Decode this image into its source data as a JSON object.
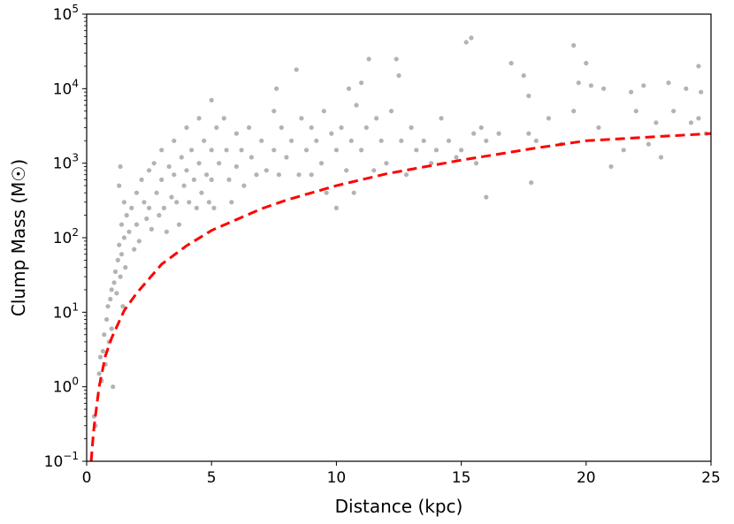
{
  "chart_data": {
    "type": "scatter",
    "title": "",
    "xlabel": "Distance (kpc)",
    "ylabel": "Clump Mass (M☉)",
    "xlim": [
      0,
      25
    ],
    "ylim": [
      0.1,
      100000
    ],
    "yscale": "log",
    "grid": false,
    "x_ticks": [
      0,
      5,
      10,
      15,
      20,
      25
    ],
    "x_tick_labels": [
      "0",
      "5",
      "10",
      "15",
      "20",
      "25"
    ],
    "y_ticks": [
      0.1,
      1,
      10,
      100,
      1000,
      10000,
      100000
    ],
    "y_tick_labels": [
      {
        "base": "10",
        "exp": "−1"
      },
      {
        "base": "10",
        "exp": "0"
      },
      {
        "base": "10",
        "exp": "1"
      },
      {
        "base": "10",
        "exp": "2"
      },
      {
        "base": "10",
        "exp": "3"
      },
      {
        "base": "10",
        "exp": "4"
      },
      {
        "base": "10",
        "exp": "5"
      }
    ],
    "series": [
      {
        "kind": "scatter",
        "color": "#808080",
        "points": [
          [
            0.3,
            0.4
          ],
          [
            0.35,
            0.3
          ],
          [
            0.5,
            1.5
          ],
          [
            0.55,
            2.5
          ],
          [
            0.6,
            1.2
          ],
          [
            0.65,
            3
          ],
          [
            0.7,
            5
          ],
          [
            0.75,
            2
          ],
          [
            0.8,
            8
          ],
          [
            0.85,
            12
          ],
          [
            0.9,
            4
          ],
          [
            0.95,
            15
          ],
          [
            1.0,
            20
          ],
          [
            1.0,
            6
          ],
          [
            1.05,
            1
          ],
          [
            1.1,
            25
          ],
          [
            1.15,
            35
          ],
          [
            1.2,
            18
          ],
          [
            1.25,
            50
          ],
          [
            1.3,
            80
          ],
          [
            1.3,
            500
          ],
          [
            1.35,
            900
          ],
          [
            1.35,
            30
          ],
          [
            1.4,
            150
          ],
          [
            1.4,
            60
          ],
          [
            1.45,
            12
          ],
          [
            1.5,
            100
          ],
          [
            1.5,
            300
          ],
          [
            1.55,
            40
          ],
          [
            1.6,
            200
          ],
          [
            1.7,
            120
          ],
          [
            1.8,
            250
          ],
          [
            1.9,
            70
          ],
          [
            2.0,
            400
          ],
          [
            2.0,
            150
          ],
          [
            2.1,
            90
          ],
          [
            2.2,
            600
          ],
          [
            2.3,
            300
          ],
          [
            2.4,
            180
          ],
          [
            2.5,
            800
          ],
          [
            2.5,
            250
          ],
          [
            2.6,
            130
          ],
          [
            2.7,
            1000
          ],
          [
            2.8,
            400
          ],
          [
            2.9,
            200
          ],
          [
            3.0,
            1500
          ],
          [
            3.0,
            600
          ],
          [
            3.1,
            250
          ],
          [
            3.2,
            120
          ],
          [
            3.3,
            900
          ],
          [
            3.4,
            350
          ],
          [
            3.5,
            2000
          ],
          [
            3.5,
            700
          ],
          [
            3.6,
            300
          ],
          [
            3.7,
            150
          ],
          [
            3.8,
            1200
          ],
          [
            3.9,
            500
          ],
          [
            4.0,
            3000
          ],
          [
            4.0,
            800
          ],
          [
            4.1,
            300
          ],
          [
            4.2,
            1500
          ],
          [
            4.3,
            600
          ],
          [
            4.4,
            250
          ],
          [
            4.5,
            4000
          ],
          [
            4.5,
            1000
          ],
          [
            4.6,
            400
          ],
          [
            4.7,
            2000
          ],
          [
            4.8,
            700
          ],
          [
            4.9,
            300
          ],
          [
            5.0,
            7000
          ],
          [
            5.0,
            1500
          ],
          [
            5.0,
            600
          ],
          [
            5.1,
            250
          ],
          [
            5.2,
            3000
          ],
          [
            5.3,
            1000
          ],
          [
            5.5,
            4000
          ],
          [
            5.6,
            1500
          ],
          [
            5.7,
            600
          ],
          [
            5.8,
            300
          ],
          [
            6.0,
            2500
          ],
          [
            6.0,
            900
          ],
          [
            6.2,
            1500
          ],
          [
            6.3,
            500
          ],
          [
            6.5,
            3000
          ],
          [
            6.6,
            1200
          ],
          [
            6.8,
            700
          ],
          [
            7.0,
            2000
          ],
          [
            7.2,
            800
          ],
          [
            7.5,
            5000
          ],
          [
            7.5,
            1500
          ],
          [
            7.6,
            10000
          ],
          [
            7.7,
            700
          ],
          [
            7.8,
            3000
          ],
          [
            8.0,
            1200
          ],
          [
            8.2,
            2000
          ],
          [
            8.4,
            18000
          ],
          [
            8.5,
            700
          ],
          [
            8.6,
            4000
          ],
          [
            8.8,
            1500
          ],
          [
            9.0,
            3000
          ],
          [
            9.0,
            700
          ],
          [
            9.2,
            2000
          ],
          [
            9.4,
            1000
          ],
          [
            9.5,
            5000
          ],
          [
            9.6,
            400
          ],
          [
            9.8,
            2500
          ],
          [
            10.0,
            1500
          ],
          [
            10.0,
            250
          ],
          [
            10.2,
            3000
          ],
          [
            10.4,
            800
          ],
          [
            10.5,
            10000
          ],
          [
            10.6,
            2000
          ],
          [
            10.7,
            400
          ],
          [
            10.8,
            6000
          ],
          [
            11.0,
            12000
          ],
          [
            11.0,
            1500
          ],
          [
            11.2,
            3000
          ],
          [
            11.3,
            25000
          ],
          [
            11.5,
            800
          ],
          [
            11.6,
            4000
          ],
          [
            11.8,
            2000
          ],
          [
            12.0,
            1000
          ],
          [
            12.2,
            5000
          ],
          [
            12.4,
            25000
          ],
          [
            12.5,
            15000
          ],
          [
            12.6,
            2000
          ],
          [
            12.8,
            700
          ],
          [
            13.0,
            3000
          ],
          [
            13.2,
            1500
          ],
          [
            13.5,
            2000
          ],
          [
            13.8,
            1000
          ],
          [
            14.0,
            1500
          ],
          [
            14.2,
            4000
          ],
          [
            14.5,
            2000
          ],
          [
            14.8,
            1200
          ],
          [
            15.0,
            1500
          ],
          [
            15.2,
            42000
          ],
          [
            15.4,
            48000
          ],
          [
            15.5,
            2500
          ],
          [
            15.6,
            1000
          ],
          [
            15.8,
            3000
          ],
          [
            16.0,
            2000
          ],
          [
            16.0,
            350
          ],
          [
            16.5,
            2500
          ],
          [
            17.0,
            22000
          ],
          [
            17.5,
            15000
          ],
          [
            17.7,
            8000
          ],
          [
            17.7,
            2500
          ],
          [
            17.8,
            550
          ],
          [
            18.0,
            2000
          ],
          [
            18.5,
            4000
          ],
          [
            19.0,
            1800
          ],
          [
            19.5,
            38000
          ],
          [
            19.5,
            5000
          ],
          [
            19.7,
            12000
          ],
          [
            20.0,
            22000
          ],
          [
            20.2,
            11000
          ],
          [
            20.5,
            3000
          ],
          [
            20.7,
            10000
          ],
          [
            21.0,
            900
          ],
          [
            21.5,
            1500
          ],
          [
            21.8,
            9000
          ],
          [
            22.0,
            5000
          ],
          [
            22.3,
            11000
          ],
          [
            22.5,
            1800
          ],
          [
            22.8,
            3500
          ],
          [
            23.0,
            1200
          ],
          [
            23.3,
            12000
          ],
          [
            23.5,
            5000
          ],
          [
            24.0,
            10000
          ],
          [
            24.2,
            3500
          ],
          [
            24.5,
            20000
          ],
          [
            24.5,
            4000
          ],
          [
            24.6,
            9000
          ],
          [
            24.8,
            2500
          ]
        ]
      },
      {
        "kind": "line",
        "style": "dashed",
        "color": "#ff0000",
        "x": [
          0.18,
          0.25,
          0.3,
          0.5,
          0.75,
          1,
          1.5,
          2,
          3,
          4,
          5,
          6,
          7,
          8,
          10,
          12,
          15,
          18,
          20,
          25
        ],
        "y": [
          0.1,
          0.2,
          0.3,
          1,
          2.6,
          4.5,
          10.5,
          18,
          44,
          78,
          125,
          175,
          245,
          320,
          500,
          720,
          1100,
          1600,
          2000,
          2500
        ]
      }
    ]
  }
}
